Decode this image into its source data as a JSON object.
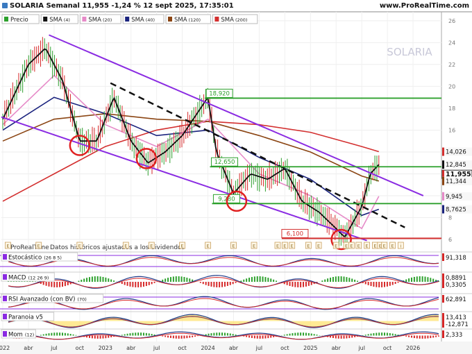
{
  "header": {
    "title": "SOLARIA Semanal 11,955 -1,24 % 12 sept 2025, 17:35:01",
    "site": "www.ProRealTime.com"
  },
  "legend": [
    {
      "label": "Precio",
      "param": "",
      "color": "#2ca02c"
    },
    {
      "label": "SMA",
      "param": "(4)",
      "color": "#111111"
    },
    {
      "label": "SMA",
      "param": "(20)",
      "color": "#e68ac8"
    },
    {
      "label": "SMA",
      "param": "(40)",
      "color": "#1a237e"
    },
    {
      "label": "SMA",
      "param": "(120)",
      "color": "#8b4513"
    },
    {
      "label": "SMA",
      "param": "(200)",
      "color": "#d32f2f"
    }
  ],
  "watermark": "SOLARIA",
  "footer_note": "ProRealTime",
  "footer_sub": "Datos históricos ajustados a los dividendos",
  "event_markers": [
    "E",
    "E",
    "E",
    "E",
    "E",
    "E",
    "E",
    "E",
    "E",
    "E",
    "E",
    "E",
    "E",
    "E",
    "E",
    "E",
    "E",
    "E",
    "E",
    "E",
    "E",
    "E",
    "E",
    "i"
  ],
  "colors": {
    "up": "#2e9e2e",
    "down": "#d62728",
    "sma4": "#111111",
    "sma20": "#e68ac8",
    "sma40": "#1a237e",
    "sma120": "#8b4513",
    "sma200": "#d32f2f",
    "channel": "#8a2be2",
    "level": "#2ca02c",
    "trend": "#111111"
  },
  "chart_data": [
    {
      "type": "line",
      "title": "SOLARIA Semanal",
      "x_tick_labels": [
        "2022",
        "abr",
        "jul",
        "oct",
        "2023",
        "abr",
        "jul",
        "oct",
        "2024",
        "abr",
        "jul",
        "oct",
        "2025",
        "abr",
        "jul",
        "oct",
        "2026"
      ],
      "y_ticks": [
        6,
        8,
        10,
        12,
        14,
        16,
        18,
        20,
        22,
        24,
        26
      ],
      "ylim": [
        6,
        26.5
      ],
      "series": [
        {
          "name": "Precio",
          "x": [
            "2022-01",
            "2022-04",
            "2022-06",
            "2022-08",
            "2022-10",
            "2022-12",
            "2023-02",
            "2023-04",
            "2023-06",
            "2023-08",
            "2023-10",
            "2024-01",
            "2024-02",
            "2024-04",
            "2024-06",
            "2024-08",
            "2024-10",
            "2024-12",
            "2025-02",
            "2025-04",
            "2025-05",
            "2025-07",
            "2025-08",
            "2025-09"
          ],
          "y": [
            17.0,
            22.0,
            23.5,
            20.5,
            15.0,
            15.0,
            19.0,
            15.0,
            13.0,
            14.0,
            15.5,
            19.0,
            14.0,
            10.2,
            12.0,
            11.5,
            12.5,
            9.5,
            8.5,
            7.0,
            6.2,
            9.0,
            12.0,
            12.845
          ]
        },
        {
          "name": "SMA (200)",
          "x": [
            "2022-01",
            "2022-07",
            "2023-01",
            "2023-07",
            "2024-01",
            "2024-07",
            "2025-01",
            "2025-07",
            "2025-09"
          ],
          "y": [
            9.5,
            12.0,
            14.5,
            16.0,
            16.8,
            16.5,
            15.8,
            14.5,
            14.026
          ]
        },
        {
          "name": "SMA (120)",
          "x": [
            "2022-01",
            "2022-07",
            "2023-01",
            "2023-07",
            "2024-01",
            "2024-07",
            "2025-01",
            "2025-07",
            "2025-09"
          ],
          "y": [
            15.0,
            17.0,
            17.5,
            17.0,
            16.8,
            15.5,
            14.0,
            11.8,
            11.344
          ]
        },
        {
          "name": "SMA (40)",
          "x": [
            "2022-01",
            "2022-07",
            "2023-01",
            "2023-07",
            "2024-01",
            "2024-07",
            "2025-01",
            "2025-07",
            "2025-09"
          ],
          "y": [
            16.0,
            19.0,
            17.5,
            15.5,
            16.0,
            13.5,
            11.5,
            8.2,
            8.7625
          ]
        },
        {
          "name": "SMA (20)",
          "x": [
            "2022-01",
            "2022-07",
            "2023-01",
            "2023-07",
            "2024-01",
            "2024-07",
            "2025-01",
            "2025-07",
            "2025-09"
          ],
          "y": [
            16.5,
            21.0,
            16.5,
            14.5,
            17.0,
            12.0,
            10.0,
            7.0,
            9.945
          ]
        }
      ],
      "horizontal_levels": [
        {
          "value": 18.92,
          "label": "18,920"
        },
        {
          "value": 12.65,
          "label": "12,650"
        },
        {
          "value": 9.28,
          "label": "9,280"
        },
        {
          "value": 6.1,
          "label": "6,100"
        }
      ],
      "right_labels": [
        {
          "value": 14.026,
          "label": "14,026"
        },
        {
          "value": 12.845,
          "label": "12,845"
        },
        {
          "value": 11.955,
          "label": "11,955"
        },
        {
          "value": 11.344,
          "label": "11,344"
        },
        {
          "value": 9.945,
          "label": "9,945"
        },
        {
          "value": 8.7625,
          "label": "8,7625"
        }
      ]
    },
    {
      "type": "line",
      "title": "Estocástico",
      "params": "(26 8 5)",
      "values": [
        "91,318"
      ]
    },
    {
      "type": "bar",
      "title": "MACD",
      "params": "(12 26 9)",
      "values": [
        "0,8891",
        "0,3305"
      ]
    },
    {
      "type": "line",
      "title": "RSI Avanzado (con BV)",
      "params": "(70)",
      "values": [
        "62,891"
      ]
    },
    {
      "type": "area",
      "title": "Paranoia v5",
      "params": "",
      "values": [
        "13,413",
        "-12,871"
      ]
    },
    {
      "type": "bar",
      "title": "Mom",
      "params": "(12)",
      "values": [
        "2,333"
      ]
    }
  ]
}
